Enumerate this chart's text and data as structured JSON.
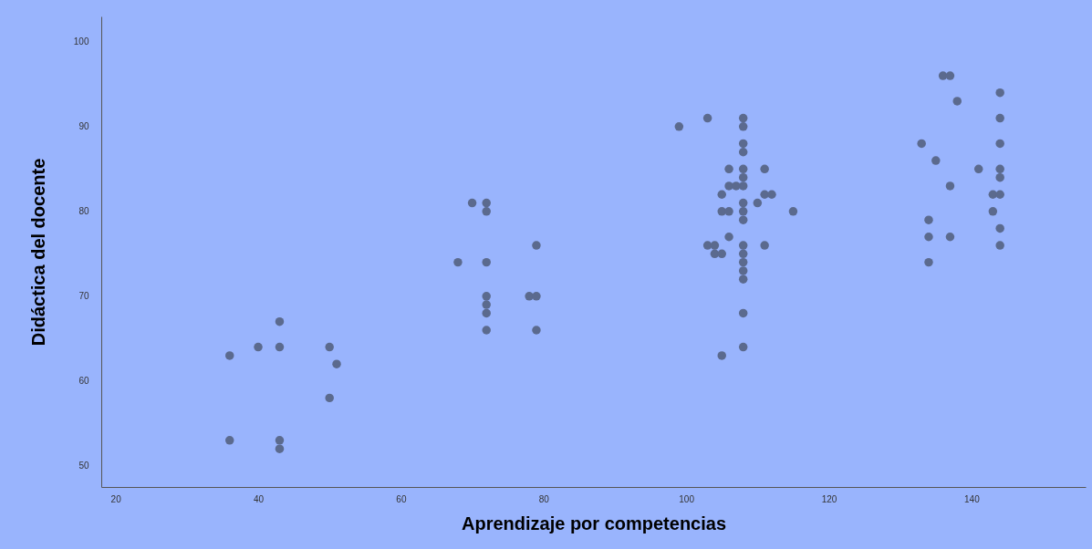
{
  "chart_data": {
    "type": "scatter",
    "xlabel": "Aprendizaje por competencias",
    "ylabel": "Didáctica del docente",
    "x": [
      36,
      36,
      40,
      43,
      43,
      43,
      43,
      50,
      51,
      50,
      70,
      72,
      72,
      79,
      68,
      72,
      72,
      72,
      72,
      72,
      78,
      79,
      79,
      99,
      103,
      108,
      108,
      108,
      108,
      108,
      108,
      108,
      108,
      108,
      108,
      108,
      108,
      108,
      108,
      108,
      108,
      108,
      106,
      111,
      106,
      107,
      105,
      111,
      112,
      110,
      105,
      106,
      115,
      106,
      103,
      104,
      104,
      105,
      111,
      105,
      136,
      137,
      144,
      138,
      144,
      133,
      144,
      135,
      141,
      144,
      144,
      137,
      143,
      144,
      143,
      134,
      144,
      134,
      137,
      144,
      134
    ],
    "values": [
      63,
      53,
      64,
      67,
      64,
      53,
      52,
      64,
      62,
      58,
      81,
      81,
      80,
      76,
      74,
      74,
      70,
      69,
      68,
      66,
      70,
      70,
      66,
      90,
      91,
      91,
      90,
      88,
      87,
      85,
      84,
      83,
      81,
      80,
      79,
      76,
      75,
      74,
      73,
      72,
      68,
      64,
      85,
      85,
      83,
      83,
      82,
      82,
      82,
      81,
      80,
      80,
      80,
      77,
      76,
      76,
      75,
      75,
      76,
      63,
      96,
      96,
      94,
      93,
      91,
      88,
      88,
      86,
      85,
      85,
      84,
      83,
      82,
      82,
      80,
      79,
      78,
      77,
      77,
      76,
      74
    ],
    "color": "#5b6a8e",
    "marker": "circle",
    "xlim": [
      18,
      156
    ],
    "ylim": [
      47.5,
      103
    ],
    "xticks": [
      20,
      40,
      60,
      80,
      100,
      120,
      140
    ],
    "yticks": [
      50,
      60,
      70,
      80,
      90,
      100
    ],
    "grid": false
  }
}
